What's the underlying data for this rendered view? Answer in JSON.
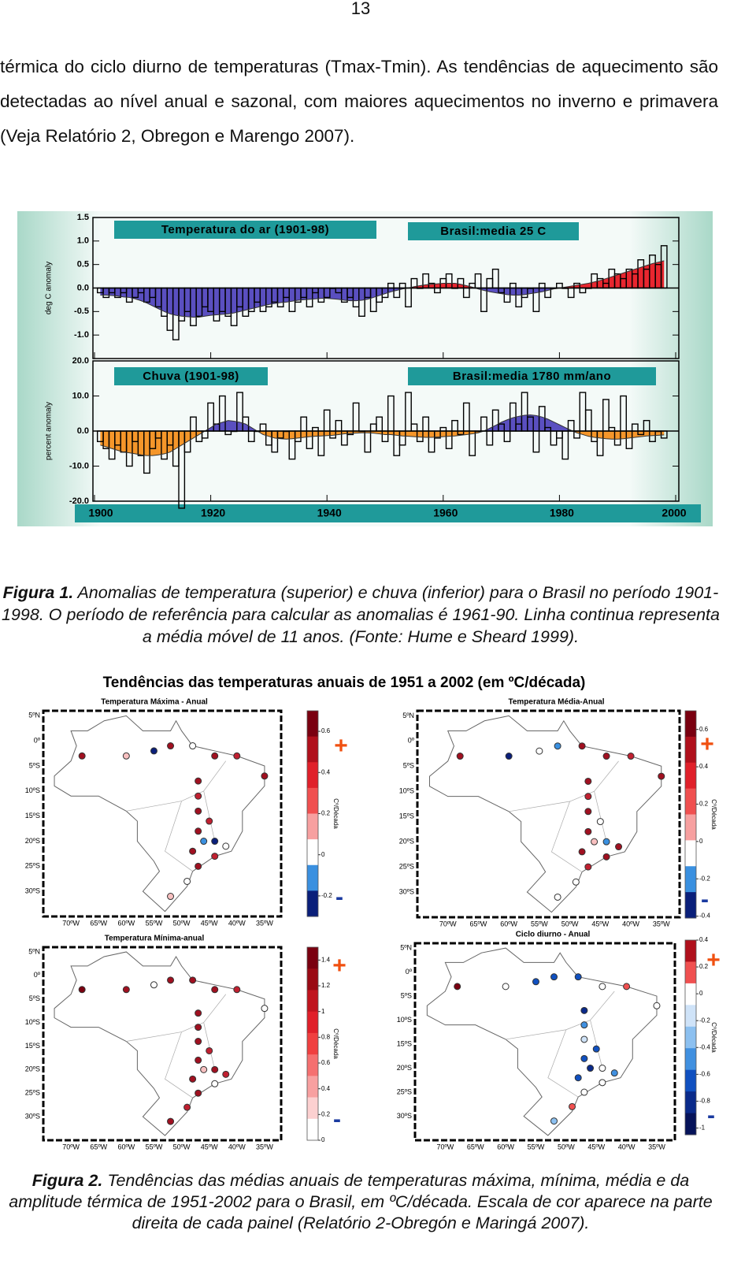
{
  "page_number": "13",
  "paragraph": "térmica do ciclo diurno de temperaturas (Tmax-Tmin). As tendências de aquecimento são detectadas ao nível anual e sazonal, com maiores aquecimentos no inverno e primavera (Veja Relatório 2, Obregon e Marengo 2007).",
  "chart_data": [
    {
      "type": "bar",
      "title": "Temperatura do ar (1901-98)",
      "annotation": "Brasil:media 25 C",
      "ylabel": "deg C anomaly",
      "x": [
        1901,
        1902,
        1903,
        1904,
        1905,
        1906,
        1907,
        1908,
        1909,
        1910,
        1911,
        1912,
        1913,
        1914,
        1915,
        1916,
        1917,
        1918,
        1919,
        1920,
        1921,
        1922,
        1923,
        1924,
        1925,
        1926,
        1927,
        1928,
        1929,
        1930,
        1931,
        1932,
        1933,
        1934,
        1935,
        1936,
        1937,
        1938,
        1939,
        1940,
        1941,
        1942,
        1943,
        1944,
        1945,
        1946,
        1947,
        1948,
        1949,
        1950,
        1951,
        1952,
        1953,
        1954,
        1955,
        1956,
        1957,
        1958,
        1959,
        1960,
        1961,
        1962,
        1963,
        1964,
        1965,
        1966,
        1967,
        1968,
        1969,
        1970,
        1971,
        1972,
        1973,
        1974,
        1975,
        1976,
        1977,
        1978,
        1979,
        1980,
        1981,
        1982,
        1983,
        1984,
        1985,
        1986,
        1987,
        1988,
        1989,
        1990,
        1991,
        1992,
        1993,
        1994,
        1995,
        1996,
        1997,
        1998
      ],
      "values": [
        -0.1,
        -0.2,
        -0.1,
        -0.2,
        -0.1,
        -0.3,
        -0.2,
        -0.1,
        -0.3,
        -0.2,
        -0.4,
        -0.6,
        -0.9,
        -1.1,
        -0.7,
        -0.5,
        -0.8,
        -0.6,
        -0.4,
        -0.5,
        -0.7,
        -0.5,
        -0.6,
        -0.8,
        -0.4,
        -0.6,
        -0.5,
        -0.3,
        -0.5,
        -0.4,
        -0.3,
        -0.4,
        -0.2,
        -0.5,
        -0.3,
        -0.2,
        -0.4,
        -0.1,
        -0.3,
        -0.2,
        0.0,
        -0.1,
        -0.3,
        -0.2,
        -0.4,
        -0.6,
        -0.2,
        -0.5,
        -0.3,
        -0.2,
        0.1,
        -0.2,
        0.1,
        -0.4,
        0.2,
        0.0,
        0.3,
        0.1,
        -0.1,
        0.2,
        0.3,
        0.0,
        0.2,
        -0.2,
        0.1,
        0.3,
        -0.5,
        0.2,
        0.4,
        -0.1,
        -0.3,
        0.1,
        -0.4,
        -0.2,
        0.0,
        -0.5,
        0.1,
        -0.2,
        0.0,
        0.1,
        0.0,
        -0.2,
        0.1,
        -0.1,
        0.0,
        0.3,
        0.2,
        0.1,
        0.4,
        0.3,
        0.2,
        0.4,
        0.3,
        0.6,
        0.4,
        0.7,
        0.5,
        0.9
      ],
      "smooth": [
        -0.15,
        -0.15,
        -0.16,
        -0.17,
        -0.19,
        -0.2,
        -0.23,
        -0.27,
        -0.32,
        -0.38,
        -0.44,
        -0.5,
        -0.55,
        -0.58,
        -0.6,
        -0.61,
        -0.62,
        -0.62,
        -0.6,
        -0.58,
        -0.57,
        -0.56,
        -0.55,
        -0.53,
        -0.5,
        -0.47,
        -0.44,
        -0.41,
        -0.38,
        -0.35,
        -0.33,
        -0.31,
        -0.3,
        -0.28,
        -0.26,
        -0.25,
        -0.24,
        -0.23,
        -0.22,
        -0.22,
        -0.23,
        -0.24,
        -0.26,
        -0.27,
        -0.27,
        -0.26,
        -0.24,
        -0.2,
        -0.16,
        -0.12,
        -0.08,
        -0.05,
        -0.02,
        0.0,
        0.03,
        0.05,
        0.07,
        0.08,
        0.09,
        0.1,
        0.1,
        0.1,
        0.08,
        0.05,
        0.02,
        -0.02,
        -0.05,
        -0.08,
        -0.1,
        -0.12,
        -0.14,
        -0.15,
        -0.15,
        -0.14,
        -0.12,
        -0.1,
        -0.08,
        -0.05,
        -0.02,
        0.0,
        0.02,
        0.04,
        0.06,
        0.08,
        0.1,
        0.13,
        0.16,
        0.2,
        0.24,
        0.28,
        0.32,
        0.36,
        0.4,
        0.44,
        0.48,
        0.52,
        0.55,
        0.58
      ],
      "colors": {
        "above": "#e8262f",
        "below": "#5a4fc0",
        "bars": "#000000"
      },
      "xlim": [
        1900,
        2000
      ],
      "xticks": [
        1900,
        1920,
        1940,
        1960,
        1980,
        2000
      ],
      "ylim": [
        -1.5,
        1.5
      ],
      "yticks": [
        {
          "value": 1.5,
          "label": "1.5"
        },
        {
          "value": 1,
          "label": "1.0"
        },
        {
          "value": 0.5,
          "label": "0.5"
        },
        {
          "value": 0,
          "label": "0.0"
        },
        {
          "value": -0.5,
          "label": "-0.5"
        },
        {
          "value": -1,
          "label": "-1.0"
        }
      ]
    },
    {
      "type": "bar",
      "title": "Chuva (1901-98)",
      "annotation": "Brasil:media 1780 mm/ano",
      "ylabel": "percent anomaly",
      "x": [
        1901,
        1902,
        1903,
        1904,
        1905,
        1906,
        1907,
        1908,
        1909,
        1910,
        1911,
        1912,
        1913,
        1914,
        1915,
        1916,
        1917,
        1918,
        1919,
        1920,
        1921,
        1922,
        1923,
        1924,
        1925,
        1926,
        1927,
        1928,
        1929,
        1930,
        1931,
        1932,
        1933,
        1934,
        1935,
        1936,
        1937,
        1938,
        1939,
        1940,
        1941,
        1942,
        1943,
        1944,
        1945,
        1946,
        1947,
        1948,
        1949,
        1950,
        1951,
        1952,
        1953,
        1954,
        1955,
        1956,
        1957,
        1958,
        1959,
        1960,
        1961,
        1962,
        1963,
        1964,
        1965,
        1966,
        1967,
        1968,
        1969,
        1970,
        1971,
        1972,
        1973,
        1974,
        1975,
        1976,
        1977,
        1978,
        1979,
        1980,
        1981,
        1982,
        1983,
        1984,
        1985,
        1986,
        1987,
        1988,
        1989,
        1990,
        1991,
        1992,
        1993,
        1994,
        1995,
        1996,
        1997,
        1998
      ],
      "values": [
        -3,
        -5,
        -8,
        -4,
        -6,
        -10,
        -3,
        -7,
        -12,
        -5,
        -2,
        -8,
        -4,
        -10,
        -22,
        -6,
        4,
        -3,
        -2,
        8,
        2,
        10,
        -1,
        0,
        11,
        4,
        -3,
        0,
        2,
        -4,
        -6,
        -2,
        0,
        -8,
        -3,
        4,
        -5,
        1,
        -7,
        6,
        -2,
        3,
        -4,
        -1,
        8,
        0,
        -6,
        2,
        4,
        -3,
        10,
        -7,
        -4,
        11,
        2,
        -3,
        4,
        -6,
        -2,
        1,
        -5,
        3,
        -1,
        8,
        -7,
        0,
        4,
        -4,
        6,
        2,
        -3,
        8,
        2,
        11,
        4,
        -6,
        7,
        1,
        -4,
        -2,
        -8,
        3,
        -2,
        11,
        6,
        -3,
        -7,
        9,
        1,
        -4,
        10,
        -5,
        2,
        -1,
        3,
        -3,
        0,
        -2
      ],
      "smooth": [
        -4,
        -4.5,
        -5,
        -5.5,
        -6,
        -6.2,
        -6.5,
        -6.8,
        -7,
        -7,
        -6.8,
        -6.5,
        -6,
        -5,
        -4,
        -3,
        -2,
        -1,
        0,
        1,
        2,
        2.5,
        3,
        2.8,
        2.5,
        2,
        1,
        0,
        -1,
        -1.5,
        -2,
        -2.2,
        -2.3,
        -2.2,
        -2,
        -1.8,
        -1.6,
        -1.5,
        -1.4,
        -1.3,
        -1.2,
        -1,
        -0.8,
        -0.7,
        -0.6,
        -0.5,
        -0.5,
        -0.6,
        -0.8,
        -1,
        -1,
        -1.2,
        -1.4,
        -1.5,
        -1.6,
        -1.7,
        -1.8,
        -1.8,
        -1.7,
        -1.6,
        -1.5,
        -1.4,
        -1.2,
        -1,
        -0.8,
        -0.5,
        0,
        0.8,
        1.6,
        2.5,
        3.2,
        3.8,
        4.2,
        4.5,
        4.6,
        4.4,
        4,
        3.4,
        2.6,
        1.8,
        1,
        0.2,
        -0.5,
        -1,
        -1.5,
        -1.8,
        -2,
        -2.2,
        -2.3,
        -2.3,
        -2.2,
        -2,
        -1.8,
        -1.6,
        -1.4,
        -1.3,
        -1.2,
        -1.1
      ],
      "colors": {
        "above": "#5a4fc0",
        "below": "#f5962a",
        "bars": "#000000"
      },
      "xlim": [
        1900,
        2000
      ],
      "xticks": [
        1900,
        1920,
        1940,
        1960,
        1980,
        2000
      ],
      "ylim": [
        -20,
        20
      ],
      "yticks": [
        {
          "value": 20,
          "label": "20.0"
        },
        {
          "value": 10,
          "label": "10.0"
        },
        {
          "value": 0,
          "label": "0.0"
        },
        {
          "value": -10,
          "label": "-10.0"
        },
        {
          "value": -20,
          "label": "-20.0"
        }
      ]
    }
  ],
  "figure1_caption": {
    "label": "Figura 1.",
    "text": "Anomalias de temperatura (superior) e chuva (inferior) para o Brasil no período 1901-1998. O período de referência para calcular as anomalias é 1961-90. Linha continua representa a média móvel de 11 anos. (Fonte: Hume e Sheard 1999)."
  },
  "figure2": {
    "title": "Tendências das temperaturas anuais de 1951 a 2002 (em ºC/década)",
    "lat_labels": [
      "5ºN",
      "0º",
      "5ºS",
      "10ºS",
      "15ºS",
      "20ºS",
      "25ºS",
      "30ºS"
    ],
    "lon_labels": [
      "70ºW",
      "65ºW",
      "60ºW",
      "55ºW",
      "50ºW",
      "45ºW",
      "40ºW",
      "35ºW"
    ],
    "colorbar_label": "Cº/Década",
    "plus": "+",
    "minus": "-",
    "panels": [
      {
        "title": "Temperatura Máxima - Anual",
        "cblim": [
          -0.3,
          0.7
        ],
        "colorbar_ticks": [
          0.6,
          0.4,
          0.2,
          0,
          -0.2
        ]
      },
      {
        "title": "Temperatura Média-Anual",
        "cblim": [
          -0.41,
          0.7
        ],
        "colorbar_ticks": [
          0.6,
          0.4,
          0.2,
          0,
          -0.2,
          -0.4
        ]
      },
      {
        "title": "Temperatura Mínima-anual",
        "cblim": [
          0,
          1.5
        ],
        "colorbar_ticks": [
          1.4,
          1.2,
          1,
          0.8,
          0.6,
          0.4,
          0.2,
          0
        ]
      },
      {
        "title": "Ciclo diurno - Anual",
        "cblim": [
          -1.05,
          0.4
        ],
        "colorbar_ticks": [
          0.4,
          0.2,
          0,
          -0.2,
          -0.4,
          -0.6,
          -0.8,
          -1
        ]
      }
    ]
  },
  "figure2_caption": {
    "label": "Figura 2.",
    "text": "Tendências das médias anuais de temperaturas máxima, mínima, média e da amplitude térmica de 1951-2002 para o Brasil, em ºC/década. Escala de cor aparece na parte direita de cada painel (Relatório 2-Obregón e Maringá 2007)."
  }
}
